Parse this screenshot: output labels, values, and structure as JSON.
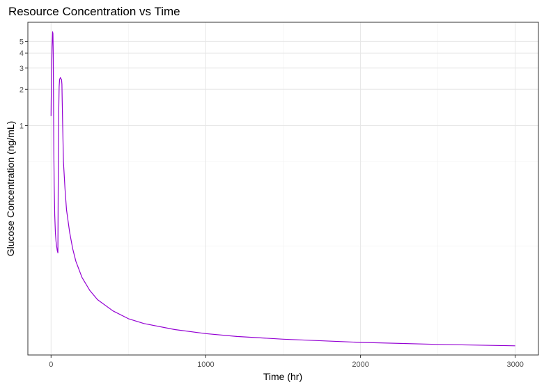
{
  "chart_data": {
    "type": "line",
    "title": "Resource Concentration vs Time",
    "xlabel": "Time (hr)",
    "ylabel": "Glucose Concentration (ng/mL)",
    "x_scale": "linear",
    "y_scale": "log",
    "xlim": [
      -150,
      3150
    ],
    "ylim": [
      0.0125,
      7.2
    ],
    "x_ticks": [
      0,
      1000,
      2000,
      3000
    ],
    "x_tick_labels": [
      "0",
      "1000",
      "2000",
      "3000"
    ],
    "y_ticks": [
      1,
      2,
      3,
      4,
      5
    ],
    "y_tick_labels": [
      "1",
      "2",
      "3",
      "4",
      "5"
    ],
    "grid": true,
    "legend": "none",
    "series": [
      {
        "color": "#9400D3",
        "x": [
          0,
          1,
          3,
          6,
          10,
          12,
          14,
          16,
          18,
          20,
          24,
          28,
          32,
          36,
          40,
          44,
          45,
          47,
          50,
          52,
          55,
          60,
          64,
          68,
          70,
          72,
          75,
          80,
          90,
          100,
          120,
          140,
          160,
          200,
          250,
          300,
          400,
          500,
          600,
          800,
          1000,
          1200,
          1500,
          2000,
          2500,
          3000
        ],
        "y": [
          1.2,
          1.6,
          2.5,
          4.5,
          6.0,
          5.8,
          4.0,
          1.5,
          0.6,
          0.32,
          0.18,
          0.13,
          0.11,
          0.1,
          0.092,
          0.088,
          0.15,
          0.6,
          1.4,
          2.1,
          2.4,
          2.5,
          2.45,
          2.4,
          2.2,
          1.6,
          1.0,
          0.5,
          0.3,
          0.2,
          0.13,
          0.095,
          0.075,
          0.055,
          0.043,
          0.036,
          0.029,
          0.025,
          0.0228,
          0.0203,
          0.0188,
          0.0178,
          0.0169,
          0.0159,
          0.0153,
          0.0149
        ]
      }
    ]
  }
}
